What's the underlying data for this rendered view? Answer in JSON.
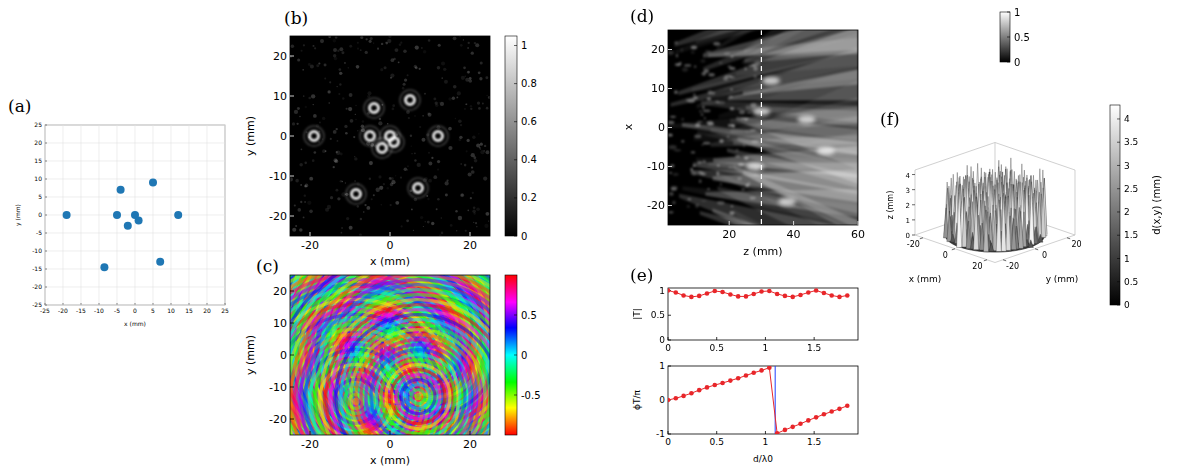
{
  "chart_data": [
    {
      "type": "scatter",
      "panel_label": "(a)",
      "x": [
        -19,
        -5,
        -4,
        -2,
        0,
        1,
        5,
        12,
        -8.5,
        7
      ],
      "values": [
        0,
        0,
        7,
        -3,
        0,
        -1.5,
        9,
        0,
        -14.5,
        -13
      ],
      "color": "#1f77b4",
      "marker": "circle",
      "xlim": [
        -25,
        25
      ],
      "ylim": [
        -25,
        25
      ],
      "xticks": [
        -25,
        -20,
        -15,
        -10,
        -5,
        0,
        5,
        10,
        15,
        20,
        25
      ],
      "yticks": [
        -25,
        -20,
        -15,
        -10,
        -5,
        0,
        5,
        10,
        15,
        20,
        25
      ],
      "x_label": "x (mm)",
      "y_label": "y (mm)",
      "grid": true
    },
    {
      "type": "image",
      "panel_label": "(b)",
      "color": "gray",
      "xlim": [
        -25,
        25
      ],
      "ylim": [
        -25,
        25
      ],
      "xticks": [
        -20,
        0,
        20
      ],
      "yticks": [
        -20,
        -10,
        0,
        10,
        20
      ],
      "x_label": "x (mm)",
      "y_label": "y (mm)",
      "colorbar": {
        "range": [
          0,
          1.05
        ],
        "ticks": [
          0,
          0.2,
          0.4,
          0.6,
          0.8,
          1
        ]
      }
    },
    {
      "type": "image",
      "panel_label": "(c)",
      "color": "hsv",
      "xlim": [
        -25,
        25
      ],
      "ylim": [
        -25,
        25
      ],
      "xticks": [
        -20,
        0,
        20
      ],
      "yticks": [
        -20,
        -10,
        0,
        10,
        20
      ],
      "x_label": "x (mm)",
      "y_label": "y (mm)",
      "colorbar": {
        "range": [
          -1,
          1
        ],
        "ticks": [
          -0.5,
          0,
          0.5
        ]
      }
    },
    {
      "type": "image",
      "panel_label": "(d)",
      "color": "gray",
      "xlim": [
        1,
        60
      ],
      "ylim": [
        -25,
        25
      ],
      "xticks": [
        20,
        40,
        60
      ],
      "yticks": [
        -20,
        -10,
        0,
        10,
        20
      ],
      "x_label": "z (mm)",
      "y_label": "x",
      "vline": 30,
      "colorbar": {
        "range": [
          0,
          1
        ],
        "ticks": [
          0,
          0.5,
          1
        ]
      }
    },
    {
      "type": "line",
      "panel_label": "(e)",
      "color": "#e8262a",
      "marker": "circle",
      "x": [
        0,
        0.08,
        0.16,
        0.24,
        0.32,
        0.4,
        0.48,
        0.56,
        0.64,
        0.72,
        0.8,
        0.88,
        0.96,
        1.04,
        1.12,
        1.2,
        1.28,
        1.36,
        1.44,
        1.52,
        1.6,
        1.68,
        1.76,
        1.84
      ],
      "values": [
        1,
        0.96,
        0.9,
        0.87,
        0.89,
        0.94,
        0.99,
        0.97,
        0.92,
        0.88,
        0.88,
        0.93,
        0.98,
        0.99,
        0.93,
        0.89,
        0.87,
        0.91,
        0.96,
        1,
        0.95,
        0.9,
        0.87,
        0.9
      ],
      "xlim": [
        0,
        1.95
      ],
      "ylim": [
        0,
        1.05
      ],
      "xticks": [
        0,
        0.5,
        1,
        1.5
      ],
      "yticks": [
        0,
        0.5,
        1
      ],
      "y_label": "|T|"
    },
    {
      "type": "line",
      "color": "#e8262a",
      "marker": "circle",
      "x": [
        0,
        0.08,
        0.16,
        0.24,
        0.32,
        0.4,
        0.48,
        0.56,
        0.64,
        0.72,
        0.8,
        0.88,
        0.96,
        1.04,
        1.12,
        1.2,
        1.28,
        1.36,
        1.44,
        1.52,
        1.6,
        1.68,
        1.76,
        1.84
      ],
      "values": [
        0,
        0.05,
        0.12,
        0.2,
        0.29,
        0.37,
        0.44,
        0.5,
        0.57,
        0.64,
        0.72,
        0.8,
        0.87,
        0.95,
        -0.98,
        -0.88,
        -0.79,
        -0.7,
        -0.6,
        -0.51,
        -0.42,
        -0.34,
        -0.26,
        -0.17
      ],
      "xlim": [
        0,
        1.95
      ],
      "ylim": [
        -1,
        1
      ],
      "xticks": [
        0,
        0.5,
        1,
        1.5
      ],
      "yticks": [
        -1,
        0,
        1
      ],
      "x_label": "d/λ0",
      "y_label": "ϕT/π",
      "vline": 1.1
    },
    {
      "type": "surface",
      "panel_label": "(f)",
      "color": "gray",
      "xlim": [
        -25,
        25
      ],
      "ylim": [
        -25,
        25
      ],
      "zlim": [
        0,
        4.3
      ],
      "xticks": [
        -20,
        0,
        20
      ],
      "yticks": [
        -20,
        0,
        20
      ],
      "zticks": [
        0,
        1,
        2,
        3,
        4
      ],
      "x_label": "x (mm)",
      "y_label": "y (mm)",
      "z_label": "z (mm)",
      "colorbar": {
        "range": [
          0,
          4.3
        ],
        "ticks": [
          0,
          0.5,
          1,
          1.5,
          2,
          2.5,
          3,
          3.5,
          4
        ],
        "label": "d(x,y) (mm)"
      }
    }
  ]
}
